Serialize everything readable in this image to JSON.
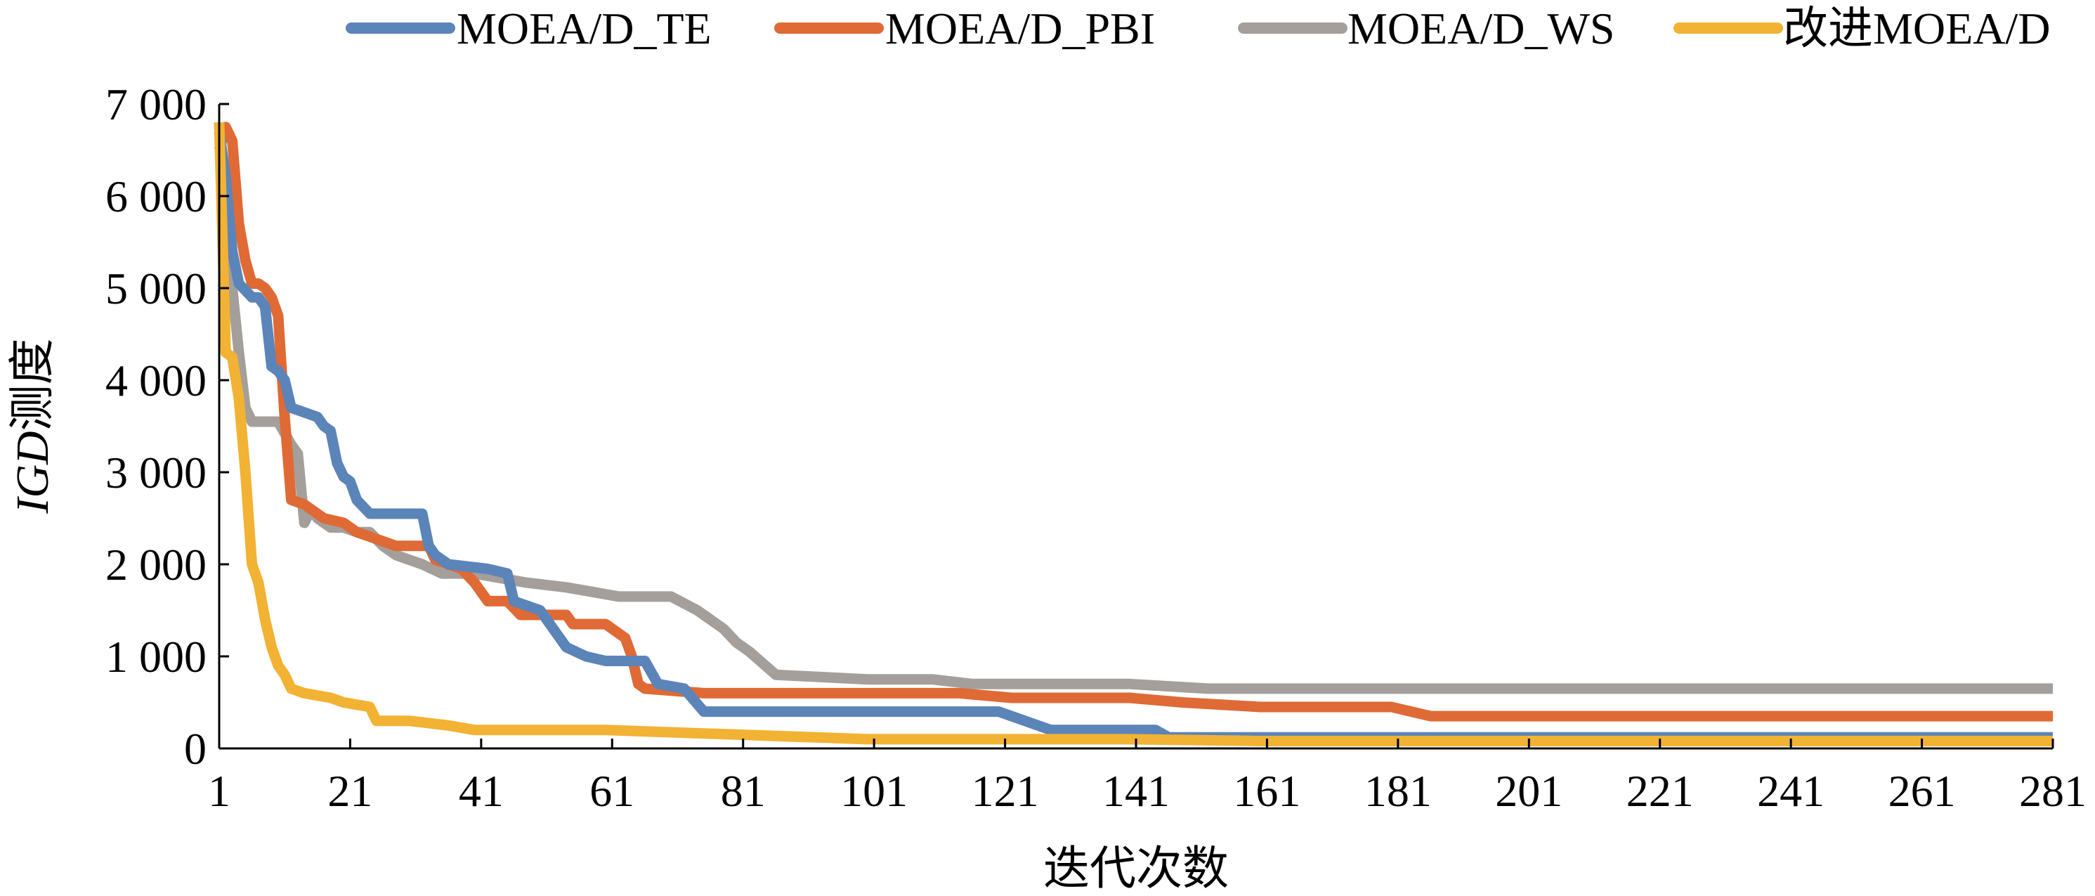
{
  "chart_data": {
    "type": "line",
    "title": "",
    "xlabel": "迭代次数",
    "ylabel": {
      "italic": "IGD",
      "rest": "测度"
    },
    "xlim": [
      1,
      281
    ],
    "ylim": [
      0,
      7000
    ],
    "x_ticks": [
      {
        "value": 1,
        "label": "1"
      },
      {
        "value": 21,
        "label": "21"
      },
      {
        "value": 41,
        "label": "41"
      },
      {
        "value": 61,
        "label": "61"
      },
      {
        "value": 81,
        "label": "81"
      },
      {
        "value": 101,
        "label": "101"
      },
      {
        "value": 121,
        "label": "121"
      },
      {
        "value": 141,
        "label": "141"
      },
      {
        "value": 161,
        "label": "161"
      },
      {
        "value": 181,
        "label": "181"
      },
      {
        "value": 201,
        "label": "201"
      },
      {
        "value": 221,
        "label": "221"
      },
      {
        "value": 241,
        "label": "241"
      },
      {
        "value": 261,
        "label": "261"
      },
      {
        "value": 281,
        "label": "281"
      }
    ],
    "y_ticks": [
      {
        "value": 0,
        "label": "0"
      },
      {
        "value": 1000,
        "label": "1 000"
      },
      {
        "value": 2000,
        "label": "2 000"
      },
      {
        "value": 3000,
        "label": "3 000"
      },
      {
        "value": 4000,
        "label": "4 000"
      },
      {
        "value": 5000,
        "label": "5 000"
      },
      {
        "value": 6000,
        "label": "6 000"
      },
      {
        "value": 7000,
        "label": "7 000"
      }
    ],
    "grid": false,
    "legend_position": "top",
    "series": [
      {
        "name": "MOEA/D_TE",
        "color": "#5B84B9",
        "points": [
          [
            1,
            6700
          ],
          [
            2,
            6200
          ],
          [
            3,
            5400
          ],
          [
            4,
            5050
          ],
          [
            6,
            4900
          ],
          [
            7,
            4900
          ],
          [
            8,
            4800
          ],
          [
            9,
            4150
          ],
          [
            10,
            4100
          ],
          [
            11,
            4000
          ],
          [
            12,
            3700
          ],
          [
            14,
            3650
          ],
          [
            16,
            3600
          ],
          [
            17,
            3500
          ],
          [
            18,
            3450
          ],
          [
            19,
            3100
          ],
          [
            20,
            2950
          ],
          [
            21,
            2900
          ],
          [
            22,
            2700
          ],
          [
            24,
            2550
          ],
          [
            32,
            2550
          ],
          [
            33,
            2200
          ],
          [
            34,
            2100
          ],
          [
            36,
            2000
          ],
          [
            42,
            1950
          ],
          [
            45,
            1900
          ],
          [
            46,
            1600
          ],
          [
            50,
            1500
          ],
          [
            54,
            1100
          ],
          [
            57,
            1000
          ],
          [
            60,
            950
          ],
          [
            66,
            950
          ],
          [
            68,
            700
          ],
          [
            72,
            650
          ],
          [
            75,
            400
          ],
          [
            120,
            400
          ],
          [
            122,
            350
          ],
          [
            128,
            200
          ],
          [
            144,
            200
          ],
          [
            146,
            120
          ],
          [
            281,
            120
          ]
        ]
      },
      {
        "name": "MOEA/D_PBI",
        "color": "#DF6A35",
        "points": [
          [
            1,
            6500
          ],
          [
            2,
            6750
          ],
          [
            3,
            6600
          ],
          [
            4,
            5700
          ],
          [
            5,
            5300
          ],
          [
            6,
            5050
          ],
          [
            7,
            5050
          ],
          [
            8,
            5000
          ],
          [
            9,
            4900
          ],
          [
            10,
            4700
          ],
          [
            11,
            3600
          ],
          [
            12,
            2700
          ],
          [
            14,
            2650
          ],
          [
            16,
            2550
          ],
          [
            17,
            2500
          ],
          [
            20,
            2450
          ],
          [
            22,
            2350
          ],
          [
            24,
            2300
          ],
          [
            28,
            2200
          ],
          [
            33,
            2200
          ],
          [
            34,
            2050
          ],
          [
            38,
            1950
          ],
          [
            40,
            1800
          ],
          [
            42,
            1600
          ],
          [
            45,
            1600
          ],
          [
            47,
            1450
          ],
          [
            52,
            1450
          ],
          [
            54,
            1450
          ],
          [
            55,
            1350
          ],
          [
            60,
            1350
          ],
          [
            62,
            1250
          ],
          [
            63,
            1200
          ],
          [
            64,
            1000
          ],
          [
            65,
            700
          ],
          [
            66,
            650
          ],
          [
            75,
            600
          ],
          [
            98,
            600
          ],
          [
            102,
            600
          ],
          [
            114,
            600
          ],
          [
            122,
            550
          ],
          [
            140,
            550
          ],
          [
            148,
            500
          ],
          [
            160,
            450
          ],
          [
            180,
            450
          ],
          [
            186,
            350
          ],
          [
            281,
            350
          ]
        ]
      },
      {
        "name": "MOEA/D_WS",
        "color": "#A49F9B",
        "points": [
          [
            1,
            6800
          ],
          [
            2,
            5200
          ],
          [
            3,
            5000
          ],
          [
            4,
            4300
          ],
          [
            5,
            3700
          ],
          [
            6,
            3550
          ],
          [
            8,
            3550
          ],
          [
            10,
            3550
          ],
          [
            12,
            3300
          ],
          [
            13,
            3200
          ],
          [
            14,
            2450
          ],
          [
            15,
            2600
          ],
          [
            16,
            2500
          ],
          [
            18,
            2400
          ],
          [
            20,
            2400
          ],
          [
            22,
            2350
          ],
          [
            24,
            2350
          ],
          [
            26,
            2200
          ],
          [
            28,
            2100
          ],
          [
            32,
            2000
          ],
          [
            35,
            1900
          ],
          [
            40,
            1900
          ],
          [
            48,
            1800
          ],
          [
            54,
            1750
          ],
          [
            58,
            1700
          ],
          [
            62,
            1650
          ],
          [
            70,
            1650
          ],
          [
            74,
            1500
          ],
          [
            78,
            1300
          ],
          [
            80,
            1150
          ],
          [
            82,
            1050
          ],
          [
            86,
            800
          ],
          [
            100,
            750
          ],
          [
            110,
            750
          ],
          [
            116,
            700
          ],
          [
            140,
            700
          ],
          [
            152,
            650
          ],
          [
            170,
            650
          ],
          [
            176,
            650
          ],
          [
            180,
            650
          ],
          [
            281,
            650
          ]
        ]
      },
      {
        "name": "改进MOEA/D",
        "color": "#F2B233",
        "points": [
          [
            1,
            6800
          ],
          [
            2,
            4300
          ],
          [
            3,
            4250
          ],
          [
            4,
            3800
          ],
          [
            5,
            3000
          ],
          [
            6,
            2000
          ],
          [
            7,
            1800
          ],
          [
            8,
            1400
          ],
          [
            9,
            1100
          ],
          [
            10,
            900
          ],
          [
            11,
            800
          ],
          [
            12,
            650
          ],
          [
            14,
            600
          ],
          [
            18,
            550
          ],
          [
            20,
            500
          ],
          [
            24,
            450
          ],
          [
            25,
            300
          ],
          [
            30,
            300
          ],
          [
            36,
            250
          ],
          [
            40,
            200
          ],
          [
            60,
            200
          ],
          [
            80,
            150
          ],
          [
            100,
            100
          ],
          [
            140,
            100
          ],
          [
            160,
            80
          ],
          [
            230,
            80
          ],
          [
            250,
            80
          ],
          [
            281,
            80
          ]
        ]
      }
    ]
  }
}
